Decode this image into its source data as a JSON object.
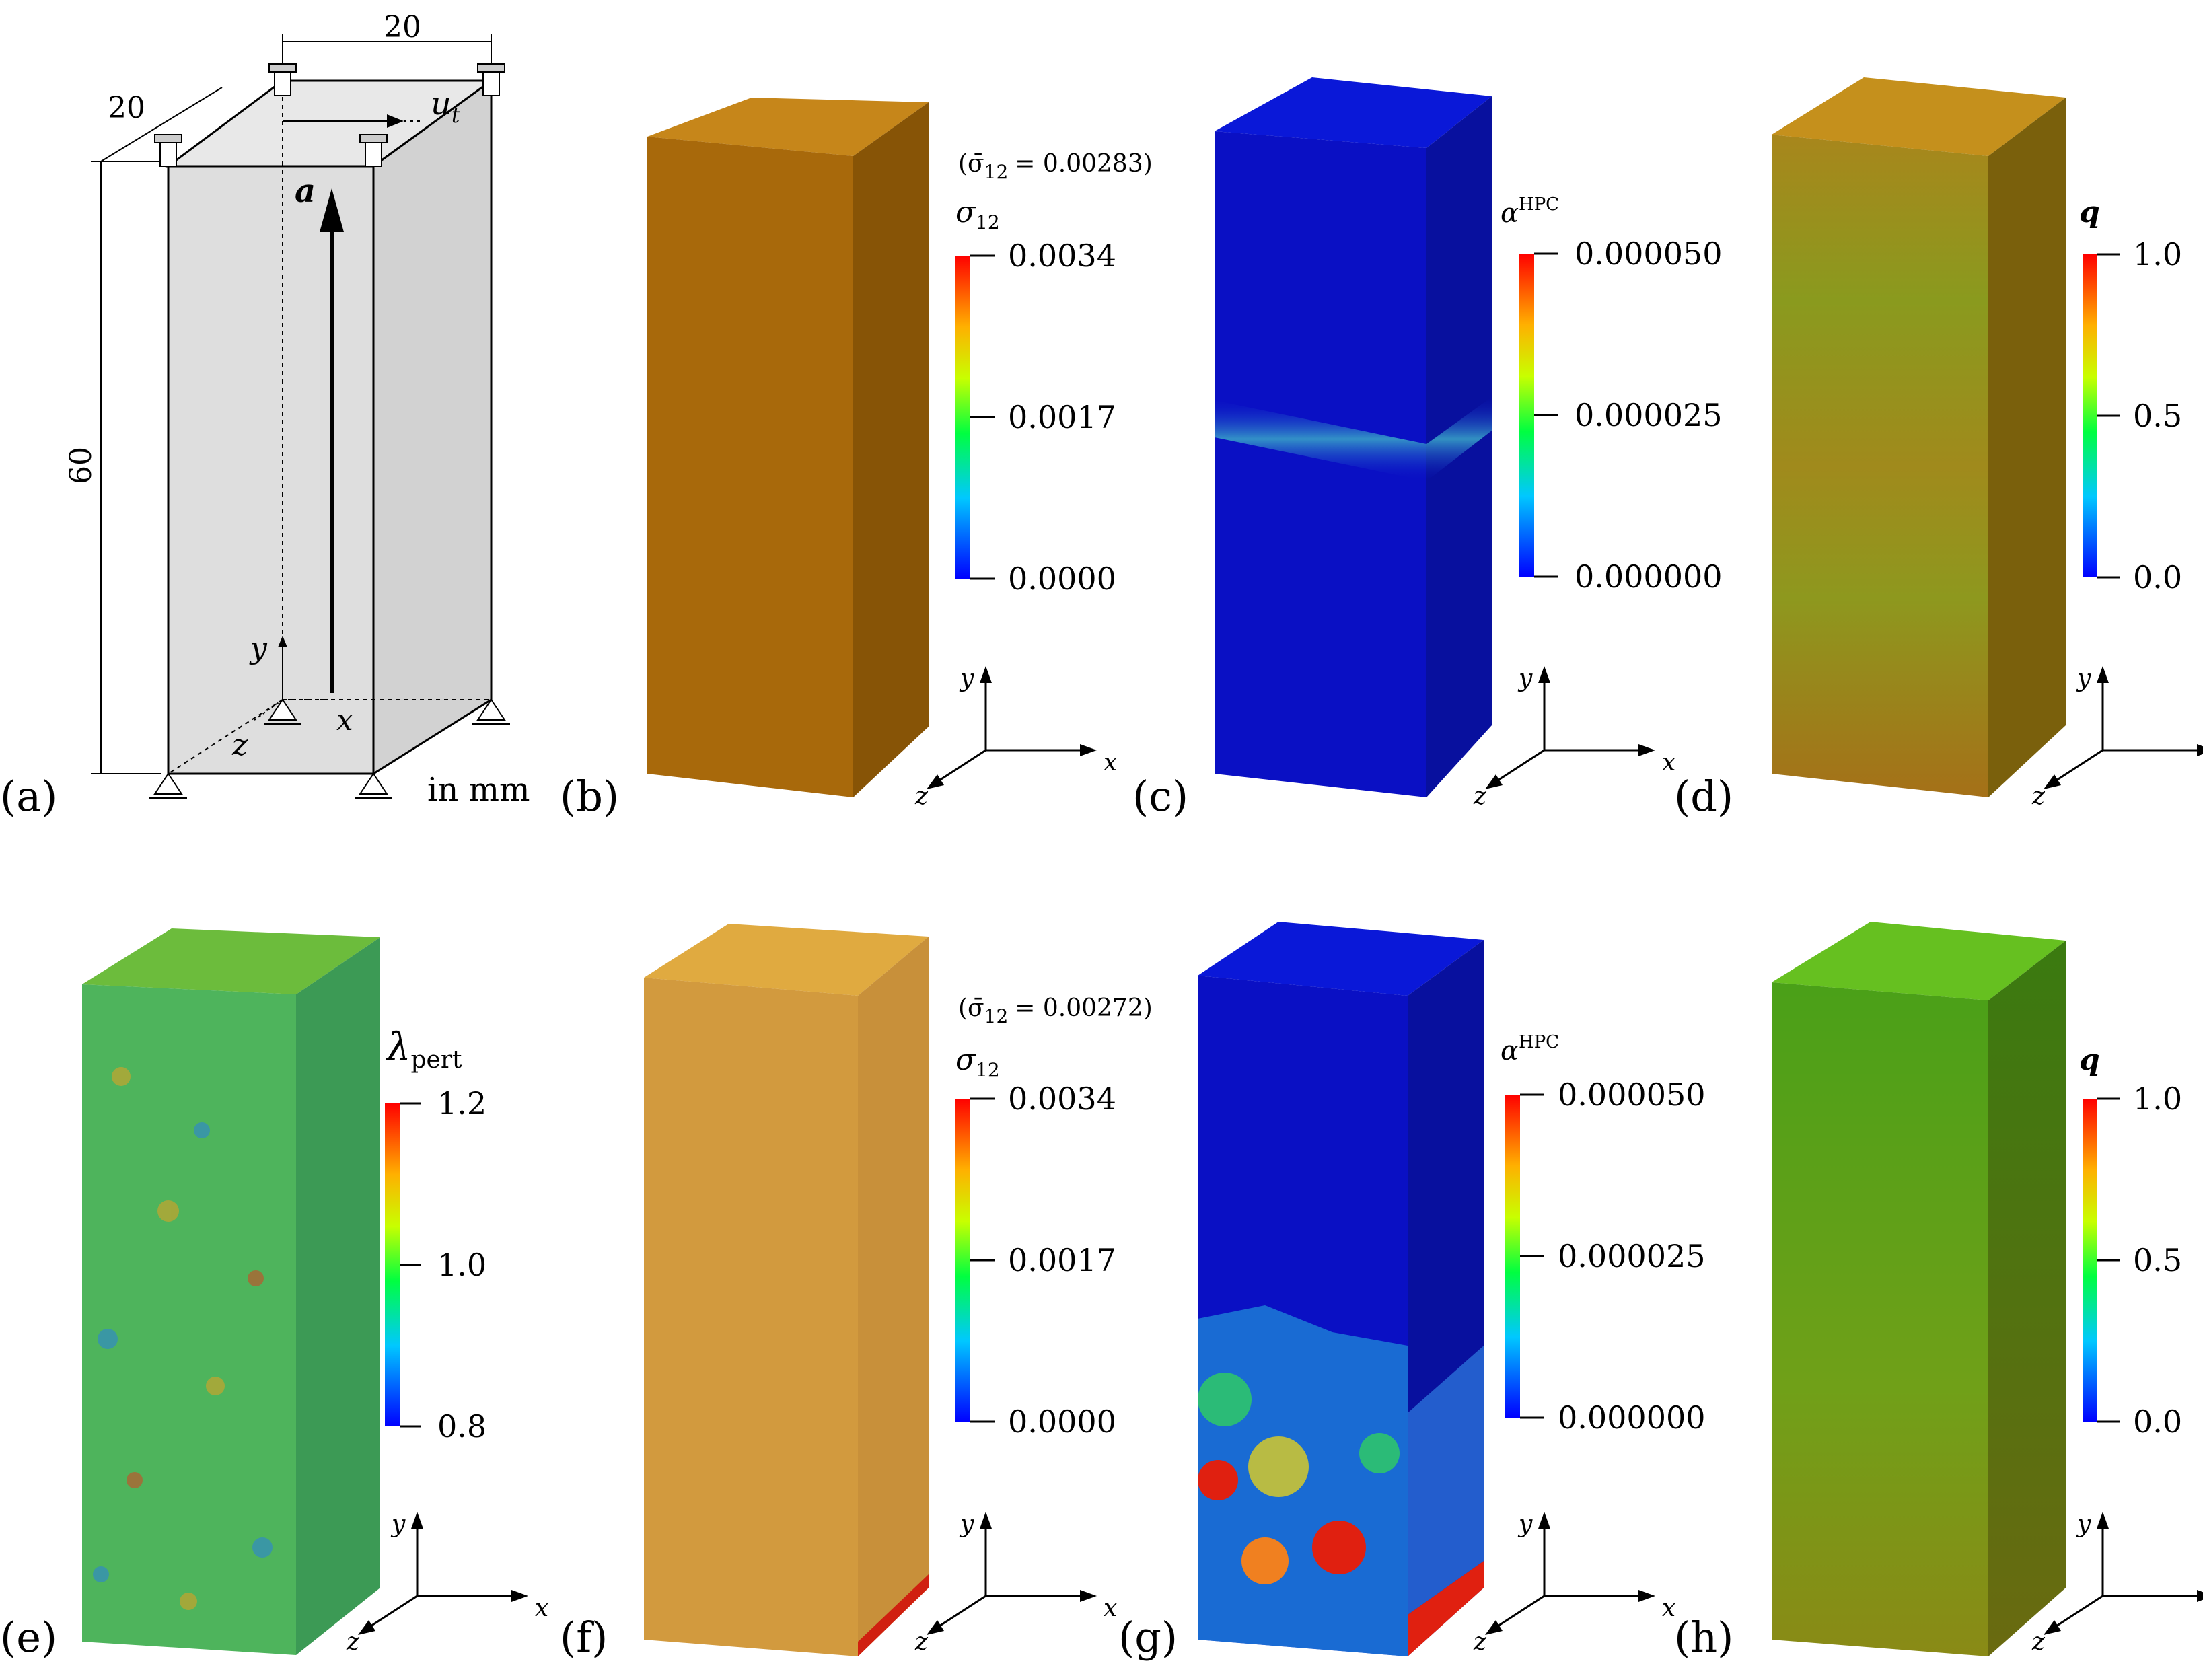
{
  "schematic": {
    "dim_width": "20",
    "dim_depth": "20",
    "dim_height": "60",
    "disp_label": "u",
    "disp_sub": "t",
    "vector_label": "a",
    "axis_x": "x",
    "axis_y": "y",
    "axis_z": "z",
    "units": "in mm"
  },
  "panels": [
    {
      "id": "a",
      "label": "(a)"
    },
    {
      "id": "b",
      "label": "(b)",
      "mean": "(σ̄",
      "mean_sub": "12",
      "mean_val": "= 0.00283)",
      "cb_sym": "σ",
      "cb_sub": "12",
      "ticks": [
        "0.0034",
        "0.0017",
        "0.0000"
      ],
      "colors": {
        "top": "#c68a12",
        "front": "#a8690b",
        "side": "#875406"
      }
    },
    {
      "id": "c",
      "label": "(c)",
      "cb_sym": "α",
      "cb_sup": "HPC",
      "ticks": [
        "0.000050",
        "0.000025",
        "0.000000"
      ],
      "colors": {
        "top": "#0a14d2",
        "front": "#0a10c4",
        "side": "#08109e",
        "band": "#3aa0c8"
      }
    },
    {
      "id": "d",
      "label": "(d)",
      "cb_sym": "q",
      "ticks": [
        "1.0",
        "0.5",
        "0.0"
      ],
      "colors": {
        "top": "#c5921a",
        "front": "#a2841a",
        "side": "#7a5a0a"
      }
    },
    {
      "id": "e",
      "label": "(e)",
      "cb_sym": "λ",
      "cb_sub": "pert",
      "ticks": [
        "1.2",
        "1.0",
        "0.8"
      ],
      "colors": {
        "top": "#6cbf3a",
        "front": "#4fb45a",
        "side": "#3c9a55"
      }
    },
    {
      "id": "f",
      "label": "(f)",
      "mean": "(σ̄",
      "mean_sub": "12",
      "mean_val": "= 0.00272)",
      "cb_sym": "σ",
      "cb_sub": "12",
      "ticks": [
        "0.0034",
        "0.0017",
        "0.0000"
      ],
      "colors": {
        "top": "#e0a83a",
        "front": "#d29a3c",
        "side": "#c88a3a"
      }
    },
    {
      "id": "g",
      "label": "(g)",
      "cb_sym": "α",
      "cb_sup": "HPC",
      "ticks": [
        "0.000050",
        "0.000025",
        "0.000000"
      ],
      "colors": {
        "top": "#0a14d2",
        "front": "#0a10c4",
        "side": "#08109e"
      }
    },
    {
      "id": "h",
      "label": "(h)",
      "cb_sym": "q",
      "ticks": [
        "1.0",
        "0.5",
        "0.0"
      ],
      "colors": {
        "top": "#66c020",
        "front": "#5aa818",
        "side": "#3d7a10"
      }
    }
  ],
  "triad": {
    "x": "x",
    "y": "y",
    "z": "z"
  }
}
